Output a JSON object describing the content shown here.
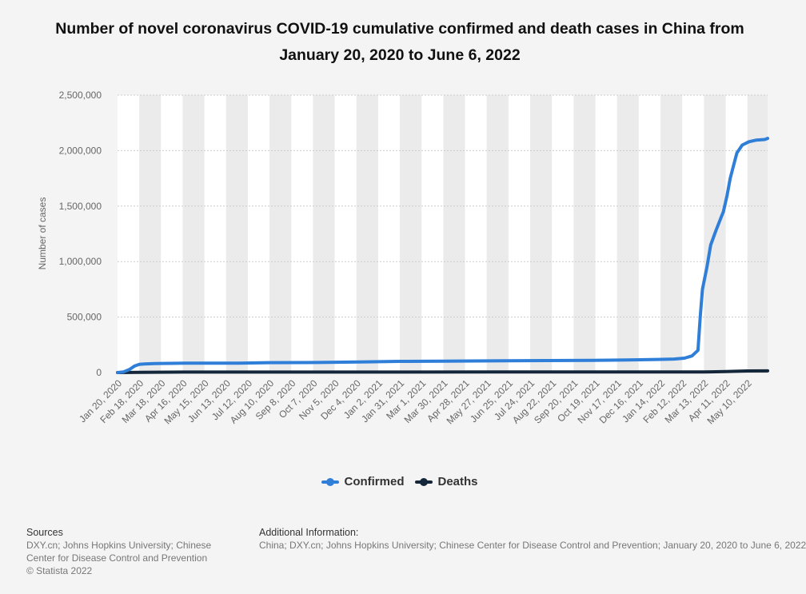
{
  "title": "Number of novel coronavirus COVID-19 cumulative confirmed and death cases in China from January 20, 2020 to June 6, 2022",
  "legend": {
    "confirmed": "Confirmed",
    "deaths": "Deaths"
  },
  "sources": {
    "heading": "Sources",
    "text": "DXY.cn; Johns Hopkins University; Chinese Center for Disease Control and Prevention",
    "copyright": "© Statista 2022"
  },
  "additional": {
    "heading": "Additional Information:",
    "text": "China; DXY.cn; Johns Hopkins University; Chinese Center for Disease Control and Prevention; January 20, 2020 to June 6, 2022"
  },
  "colors": {
    "confirmed": "#2f7ed8",
    "deaths": "#14263a",
    "grid": "#cccccc",
    "band": "#ebebeb"
  },
  "chart_data": {
    "type": "line",
    "title": "Number of novel coronavirus COVID-19 cumulative confirmed and death cases in China from January 20, 2020 to June 6, 2022",
    "xlabel": "",
    "ylabel": "Number of cases",
    "ylim": [
      0,
      2500000
    ],
    "yticks": [
      0,
      500000,
      1000000,
      1500000,
      2000000,
      2500000
    ],
    "ytick_labels": [
      "0",
      "500,000",
      "1,000,000",
      "1,500,000",
      "2,000,000",
      "2,500,000"
    ],
    "x_start": "2020-01-20",
    "x_end": "2022-06-06",
    "xtick_dates": [
      "2020-01-20",
      "2020-02-18",
      "2020-03-18",
      "2020-04-16",
      "2020-05-15",
      "2020-06-13",
      "2020-07-12",
      "2020-08-10",
      "2020-09-08",
      "2020-10-07",
      "2020-11-05",
      "2020-12-04",
      "2021-01-02",
      "2021-01-31",
      "2021-03-01",
      "2021-03-30",
      "2021-04-28",
      "2021-05-27",
      "2021-06-25",
      "2021-07-24",
      "2021-08-22",
      "2021-09-20",
      "2021-10-19",
      "2021-11-17",
      "2021-12-16",
      "2022-01-14",
      "2022-02-12",
      "2022-03-13",
      "2022-04-11",
      "2022-05-10"
    ],
    "xtick_labels": [
      "Jan 20, 2020",
      "Feb 18, 2020",
      "Mar 18, 2020",
      "Apr 16, 2020",
      "May 15, 2020",
      "Jun 13, 2020",
      "Jul 12, 2020",
      "Aug 10, 2020",
      "Sep 8, 2020",
      "Oct 7, 2020",
      "Nov 5, 2020",
      "Dec 4, 2020",
      "Jan 2, 2021",
      "Jan 31, 2021",
      "Mar 1, 2021",
      "Mar 30, 2021",
      "Apr 28, 2021",
      "May 27, 2021",
      "Jun 25, 2021",
      "Jul 24, 2021",
      "Aug 22, 2021",
      "Sep 20, 2021",
      "Oct 19, 2021",
      "Nov 17, 2021",
      "Dec 16, 2021",
      "Jan 14, 2022",
      "Feb 12, 2022",
      "Mar 13, 2022",
      "Apr 11, 2022",
      "May 10, 2022"
    ],
    "grid": true,
    "legend_position": "bottom-center",
    "series": [
      {
        "name": "Confirmed",
        "points": [
          [
            "2020-01-20",
            300
          ],
          [
            "2020-01-28",
            6000
          ],
          [
            "2020-02-05",
            28000
          ],
          [
            "2020-02-12",
            60000
          ],
          [
            "2020-02-18",
            74000
          ],
          [
            "2020-02-25",
            78000
          ],
          [
            "2020-03-10",
            81000
          ],
          [
            "2020-04-20",
            84000
          ],
          [
            "2020-07-01",
            85000
          ],
          [
            "2020-08-10",
            89000
          ],
          [
            "2020-10-15",
            91000
          ],
          [
            "2020-12-10",
            95000
          ],
          [
            "2021-01-31",
            101000
          ],
          [
            "2021-04-01",
            103000
          ],
          [
            "2021-06-01",
            105000
          ],
          [
            "2021-08-15",
            108000
          ],
          [
            "2021-10-15",
            110000
          ],
          [
            "2021-12-01",
            114000
          ],
          [
            "2022-01-10",
            118000
          ],
          [
            "2022-02-01",
            122000
          ],
          [
            "2022-02-15",
            130000
          ],
          [
            "2022-02-25",
            150000
          ],
          [
            "2022-03-05",
            200000
          ],
          [
            "2022-03-08",
            500000
          ],
          [
            "2022-03-11",
            750000
          ],
          [
            "2022-03-17",
            950000
          ],
          [
            "2022-03-22",
            1150000
          ],
          [
            "2022-03-29",
            1280000
          ],
          [
            "2022-04-05",
            1400000
          ],
          [
            "2022-04-08",
            1450000
          ],
          [
            "2022-04-13",
            1600000
          ],
          [
            "2022-04-17",
            1750000
          ],
          [
            "2022-04-22",
            1880000
          ],
          [
            "2022-04-26",
            1980000
          ],
          [
            "2022-05-03",
            2050000
          ],
          [
            "2022-05-12",
            2080000
          ],
          [
            "2022-05-22",
            2095000
          ],
          [
            "2022-06-02",
            2100000
          ],
          [
            "2022-06-06",
            2110000
          ]
        ]
      },
      {
        "name": "Deaths",
        "points": [
          [
            "2020-01-20",
            6
          ],
          [
            "2020-02-18",
            2000
          ],
          [
            "2020-04-17",
            4600
          ],
          [
            "2021-06-01",
            4800
          ],
          [
            "2022-01-10",
            4900
          ],
          [
            "2022-03-13",
            5000
          ],
          [
            "2022-04-11",
            8500
          ],
          [
            "2022-05-10",
            14500
          ],
          [
            "2022-06-06",
            15000
          ]
        ]
      }
    ]
  }
}
